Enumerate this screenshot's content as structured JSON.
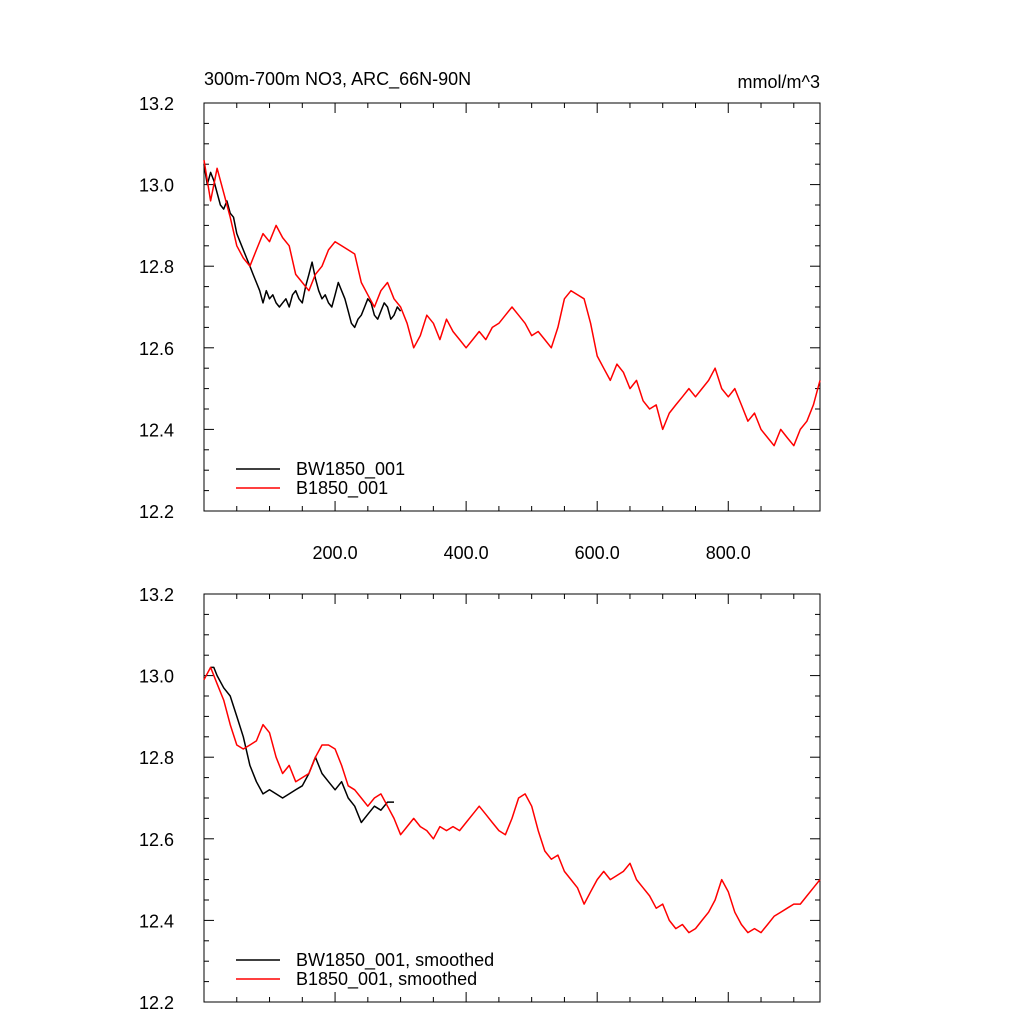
{
  "title": "300m-700m NO3, ARC_66N-90N",
  "units": "mmol/m^3",
  "chart_data": [
    {
      "type": "line",
      "panel": "top",
      "xlim": [
        0,
        940
      ],
      "ylim": [
        12.2,
        13.2
      ],
      "yticks": [
        "13.2",
        "13.0",
        "12.8",
        "12.6",
        "12.4",
        "12.2"
      ],
      "xticks": [
        "200.0",
        "400.0",
        "600.0",
        "800.0"
      ],
      "legend_position": "bottom-left",
      "grid": false,
      "series": [
        {
          "name": "BW1850_001",
          "color": "#000000",
          "x": [
            0,
            5,
            10,
            15,
            20,
            25,
            30,
            35,
            40,
            45,
            50,
            55,
            60,
            65,
            70,
            75,
            80,
            85,
            90,
            95,
            100,
            105,
            110,
            115,
            120,
            125,
            130,
            135,
            140,
            145,
            150,
            155,
            160,
            165,
            170,
            175,
            180,
            185,
            190,
            195,
            200,
            205,
            210,
            215,
            220,
            225,
            230,
            235,
            240,
            245,
            250,
            255,
            260,
            265,
            270,
            275,
            280,
            285,
            290,
            295,
            300
          ],
          "y": [
            13.05,
            13.0,
            13.03,
            13.01,
            12.98,
            12.95,
            12.94,
            12.96,
            12.93,
            12.92,
            12.88,
            12.86,
            12.84,
            12.82,
            12.8,
            12.78,
            12.76,
            12.74,
            12.71,
            12.74,
            12.72,
            12.73,
            12.71,
            12.7,
            12.71,
            12.72,
            12.7,
            12.73,
            12.74,
            12.72,
            12.71,
            12.75,
            12.78,
            12.81,
            12.77,
            12.74,
            12.72,
            12.73,
            12.71,
            12.7,
            12.73,
            12.76,
            12.74,
            12.72,
            12.69,
            12.66,
            12.65,
            12.67,
            12.68,
            12.7,
            12.72,
            12.71,
            12.68,
            12.67,
            12.69,
            12.71,
            12.7,
            12.67,
            12.68,
            12.7,
            12.69
          ]
        },
        {
          "name": "B1850_001",
          "color": "#ff0000",
          "x": [
            0,
            10,
            20,
            30,
            40,
            50,
            60,
            70,
            80,
            90,
            100,
            110,
            120,
            130,
            140,
            150,
            160,
            170,
            180,
            190,
            200,
            210,
            220,
            230,
            240,
            250,
            260,
            270,
            280,
            290,
            300,
            310,
            320,
            330,
            340,
            350,
            360,
            370,
            380,
            390,
            400,
            410,
            420,
            430,
            440,
            450,
            460,
            470,
            480,
            490,
            500,
            510,
            520,
            530,
            540,
            550,
            560,
            570,
            580,
            590,
            600,
            610,
            620,
            630,
            640,
            650,
            660,
            670,
            680,
            690,
            700,
            710,
            720,
            730,
            740,
            750,
            760,
            770,
            780,
            790,
            800,
            810,
            820,
            830,
            840,
            850,
            860,
            870,
            880,
            890,
            900,
            910,
            920,
            930,
            940
          ],
          "y": [
            13.06,
            12.96,
            13.04,
            12.98,
            12.92,
            12.85,
            12.82,
            12.8,
            12.84,
            12.88,
            12.86,
            12.9,
            12.87,
            12.85,
            12.78,
            12.76,
            12.74,
            12.78,
            12.8,
            12.84,
            12.86,
            12.85,
            12.84,
            12.83,
            12.76,
            12.73,
            12.7,
            12.74,
            12.76,
            12.72,
            12.7,
            12.66,
            12.6,
            12.63,
            12.68,
            12.66,
            12.62,
            12.67,
            12.64,
            12.62,
            12.6,
            12.62,
            12.64,
            12.62,
            12.65,
            12.66,
            12.68,
            12.7,
            12.68,
            12.66,
            12.63,
            12.64,
            12.62,
            12.6,
            12.65,
            12.72,
            12.74,
            12.73,
            12.72,
            12.66,
            12.58,
            12.55,
            12.52,
            12.56,
            12.54,
            12.5,
            12.52,
            12.47,
            12.45,
            12.46,
            12.4,
            12.44,
            12.46,
            12.48,
            12.5,
            12.48,
            12.5,
            12.52,
            12.55,
            12.5,
            12.48,
            12.5,
            12.46,
            12.42,
            12.44,
            12.4,
            12.38,
            12.36,
            12.4,
            12.38,
            12.36,
            12.4,
            12.42,
            12.46,
            12.52
          ]
        }
      ]
    },
    {
      "type": "line",
      "panel": "bottom",
      "xlim": [
        0,
        940
      ],
      "ylim": [
        12.2,
        13.2
      ],
      "yticks": [
        "13.2",
        "13.0",
        "12.8",
        "12.6",
        "12.4",
        "12.2"
      ],
      "legend_position": "bottom-left",
      "grid": false,
      "series": [
        {
          "name": "BW1850_001, smoothed",
          "color": "#000000",
          "x": [
            10,
            15,
            20,
            30,
            40,
            50,
            60,
            70,
            80,
            90,
            100,
            110,
            120,
            130,
            140,
            150,
            160,
            170,
            180,
            190,
            200,
            210,
            220,
            230,
            240,
            250,
            260,
            270,
            280,
            290
          ],
          "y": [
            13.02,
            13.02,
            13.0,
            12.97,
            12.95,
            12.9,
            12.85,
            12.78,
            12.74,
            12.71,
            12.72,
            12.71,
            12.7,
            12.71,
            12.72,
            12.73,
            12.76,
            12.8,
            12.76,
            12.74,
            12.72,
            12.74,
            12.7,
            12.68,
            12.64,
            12.66,
            12.68,
            12.67,
            12.69,
            12.69
          ]
        },
        {
          "name": "B1850_001, smoothed",
          "color": "#ff0000",
          "x": [
            0,
            10,
            20,
            30,
            40,
            50,
            60,
            70,
            80,
            90,
            100,
            110,
            120,
            130,
            140,
            150,
            160,
            170,
            180,
            190,
            200,
            210,
            220,
            230,
            240,
            250,
            260,
            270,
            280,
            290,
            300,
            310,
            320,
            330,
            340,
            350,
            360,
            370,
            380,
            390,
            400,
            410,
            420,
            430,
            440,
            450,
            460,
            470,
            480,
            490,
            500,
            510,
            520,
            530,
            540,
            550,
            560,
            570,
            580,
            590,
            600,
            610,
            620,
            630,
            640,
            650,
            660,
            670,
            680,
            690,
            700,
            710,
            720,
            730,
            740,
            750,
            760,
            770,
            780,
            790,
            800,
            810,
            820,
            830,
            840,
            850,
            860,
            870,
            880,
            890,
            900,
            910,
            920,
            930,
            940
          ],
          "y": [
            12.99,
            13.02,
            12.98,
            12.94,
            12.88,
            12.83,
            12.82,
            12.83,
            12.84,
            12.88,
            12.86,
            12.8,
            12.76,
            12.78,
            12.74,
            12.75,
            12.76,
            12.8,
            12.83,
            12.83,
            12.82,
            12.78,
            12.73,
            12.72,
            12.7,
            12.68,
            12.7,
            12.71,
            12.68,
            12.65,
            12.61,
            12.63,
            12.65,
            12.63,
            12.62,
            12.6,
            12.63,
            12.62,
            12.63,
            12.62,
            12.64,
            12.66,
            12.68,
            12.66,
            12.64,
            12.62,
            12.61,
            12.65,
            12.7,
            12.71,
            12.68,
            12.62,
            12.57,
            12.55,
            12.56,
            12.52,
            12.5,
            12.48,
            12.44,
            12.47,
            12.5,
            12.52,
            12.5,
            12.51,
            12.52,
            12.54,
            12.5,
            12.48,
            12.46,
            12.43,
            12.44,
            12.4,
            12.38,
            12.39,
            12.37,
            12.38,
            12.4,
            12.42,
            12.45,
            12.5,
            12.47,
            12.42,
            12.39,
            12.37,
            12.38,
            12.37,
            12.39,
            12.41,
            12.42,
            12.43,
            12.44,
            12.44,
            12.46,
            12.48,
            12.5
          ]
        }
      ]
    }
  ]
}
